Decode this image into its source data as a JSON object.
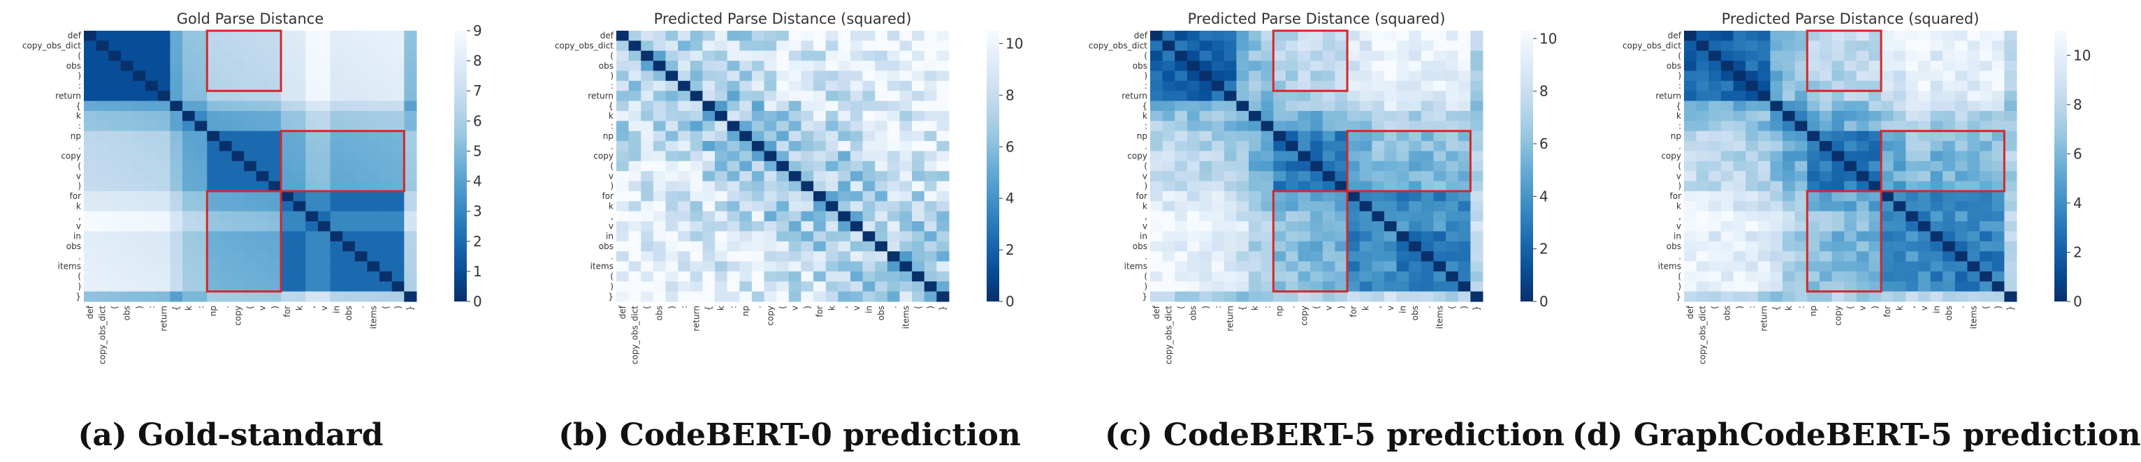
{
  "tokens": [
    "def",
    "copy_obs_dict",
    "(",
    "obs",
    ")",
    ":",
    "return",
    "{",
    "k",
    ":",
    "np",
    ".",
    "copy",
    "(",
    "v",
    ")",
    "for",
    "k",
    ",",
    "v",
    "in",
    "obs",
    ".",
    "items",
    "(",
    ")",
    "}"
  ],
  "colors": {
    "min": "#08306b",
    "max": "#f7fbff",
    "box": "#d62728"
  },
  "panels": [
    {
      "caption": "(a) Gold-standard",
      "chart_data": {
        "type": "heatmap",
        "title": "Gold Parse Distance",
        "colorbar": {
          "range": [
            0,
            9
          ],
          "ticks": [
            "0",
            "1",
            "2",
            "3",
            "4",
            "5",
            "6",
            "7",
            "8",
            "9"
          ]
        },
        "highlight_boxes": [
          {
            "row_start": 0,
            "row_end": 5,
            "col_start": 10,
            "col_end": 15
          },
          {
            "row_start": 10,
            "row_end": 15,
            "col_start": 16,
            "col_end": 25
          },
          {
            "row_start": 16,
            "row_end": 25,
            "col_start": 10,
            "col_end": 15
          }
        ]
      }
    },
    {
      "caption": "(b) CodeBERT-0 prediction",
      "chart_data": {
        "type": "heatmap",
        "title": "Predicted Parse Distance (squared)",
        "colorbar": {
          "range": [
            0,
            10.5
          ],
          "ticks": [
            "0",
            "2",
            "4",
            "6",
            "8",
            "10"
          ]
        },
        "highlight_boxes": []
      }
    },
    {
      "caption": "(c) CodeBERT-5 prediction",
      "chart_data": {
        "type": "heatmap",
        "title": "Predicted Parse Distance (squared)",
        "colorbar": {
          "range": [
            0,
            10.3
          ],
          "ticks": [
            "0",
            "2",
            "4",
            "6",
            "8",
            "10"
          ]
        },
        "highlight_boxes": [
          {
            "row_start": 0,
            "row_end": 5,
            "col_start": 10,
            "col_end": 15
          },
          {
            "row_start": 10,
            "row_end": 15,
            "col_start": 16,
            "col_end": 25
          },
          {
            "row_start": 16,
            "row_end": 25,
            "col_start": 10,
            "col_end": 15
          }
        ]
      }
    },
    {
      "caption": "(d) GraphCodeBERT-5 prediction",
      "chart_data": {
        "type": "heatmap",
        "title": "Predicted Parse Distance (squared)",
        "colorbar": {
          "range": [
            0,
            11
          ],
          "ticks": [
            "0",
            "2",
            "4",
            "6",
            "8",
            "10"
          ]
        },
        "highlight_boxes": [
          {
            "row_start": 0,
            "row_end": 5,
            "col_start": 10,
            "col_end": 15
          },
          {
            "row_start": 10,
            "row_end": 15,
            "col_start": 16,
            "col_end": 25
          },
          {
            "row_start": 16,
            "row_end": 25,
            "col_start": 10,
            "col_end": 15
          }
        ]
      }
    }
  ]
}
